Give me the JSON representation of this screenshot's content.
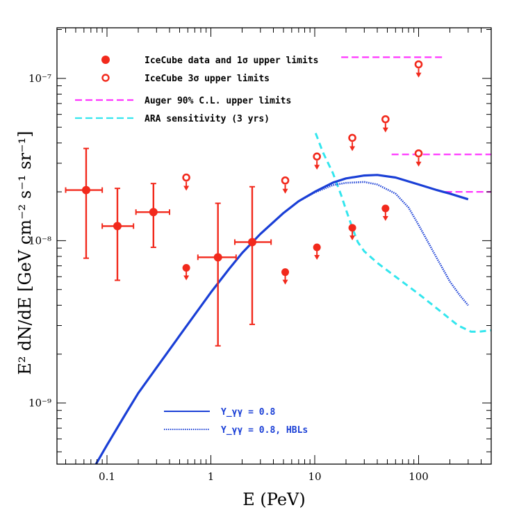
{
  "chart_data": {
    "type": "scatter",
    "title": "",
    "xlabel": "E (PeV)",
    "ylabel": "E² dN/dE [GeV cm⁻² s⁻¹ sr⁻¹]",
    "x_scale": "log",
    "y_scale": "log",
    "xlim": [
      0.033,
      500
    ],
    "ylim": [
      4.2e-10,
      2.05e-07
    ],
    "x_ticks": [
      {
        "value": 0.1,
        "label": "0.1"
      },
      {
        "value": 1,
        "label": "1"
      },
      {
        "value": 10,
        "label": "10"
      },
      {
        "value": 100,
        "label": "100"
      }
    ],
    "y_ticks": [
      {
        "value": 1e-09,
        "label": "10⁻⁹"
      },
      {
        "value": 1e-08,
        "label": "10⁻⁸"
      },
      {
        "value": 1e-07,
        "label": "10⁻⁷"
      }
    ],
    "colors": {
      "icecube": "#f2291c",
      "auger": "#ff33ff",
      "ara": "#33e6ee",
      "model": "#1a3fd6"
    },
    "legend_top": [
      {
        "key": "icecube_data",
        "label": "IceCube data and 1σ upper limits"
      },
      {
        "key": "icecube_3sigma",
        "label": "IceCube 3σ upper limits"
      },
      {
        "key": "auger",
        "label": "Auger 90% C.L. upper limits"
      },
      {
        "key": "ara",
        "label": "ARA sensitivity (3 yrs)"
      }
    ],
    "legend_bottom": [
      {
        "key": "model_solid",
        "label": "Y_γγ = 0.8"
      },
      {
        "key": "model_dotted",
        "label": "Y_γγ = 0.8, HBLs"
      }
    ],
    "icecube_data": [
      {
        "x": 0.063,
        "y": 2.05e-08,
        "xlo": 0.04,
        "xhi": 0.09,
        "ylo": 7.8e-09,
        "yhi": 3.7e-08
      },
      {
        "x": 0.126,
        "y": 1.23e-08,
        "xlo": 0.09,
        "xhi": 0.18,
        "ylo": 5.7e-09,
        "yhi": 2.1e-08
      },
      {
        "x": 0.28,
        "y": 1.5e-08,
        "xlo": 0.19,
        "xhi": 0.4,
        "ylo": 9.1e-09,
        "yhi": 2.25e-08
      },
      {
        "x": 1.17,
        "y": 7.9e-09,
        "xlo": 0.75,
        "xhi": 1.75,
        "ylo": 2.25e-09,
        "yhi": 1.7e-08
      },
      {
        "x": 2.5,
        "y": 9.8e-09,
        "xlo": 1.7,
        "xhi": 3.8,
        "ylo": 3.05e-09,
        "yhi": 2.15e-08
      }
    ],
    "icecube_1sigma_limits": [
      {
        "x": 0.58,
        "y": 6.8e-09
      },
      {
        "x": 5.2,
        "y": 6.4e-09
      },
      {
        "x": 10.5,
        "y": 9.1e-09
      },
      {
        "x": 23,
        "y": 1.2e-08
      },
      {
        "x": 48,
        "y": 1.58e-08
      }
    ],
    "icecube_3sigma_limits": [
      {
        "x": 0.58,
        "y": 2.45e-08
      },
      {
        "x": 5.2,
        "y": 2.35e-08
      },
      {
        "x": 10.5,
        "y": 3.3e-08
      },
      {
        "x": 23,
        "y": 4.3e-08
      },
      {
        "x": 48,
        "y": 5.6e-08
      },
      {
        "x": 100,
        "y": 1.22e-07
      },
      {
        "x": 100,
        "y": 3.45e-08
      }
    ],
    "auger_limits": [
      {
        "x1": 18,
        "x2": 180,
        "y": 1.35e-07
      },
      {
        "x1": 55,
        "x2": 500,
        "y": 3.4e-08
      },
      {
        "x1": 180,
        "x2": 500,
        "y": 2e-08
      }
    ],
    "series": [
      {
        "name": "ARA sensitivity (3 yrs)",
        "style": "dashed",
        "x": [
          10.2,
          12,
          15,
          18,
          20,
          23,
          26,
          30,
          40,
          60,
          100,
          160,
          240,
          320,
          380,
          500
        ],
        "y": [
          4.6e-08,
          3.5e-08,
          2.6e-08,
          1.9e-08,
          1.55e-08,
          1.2e-08,
          9.8e-09,
          8.6e-09,
          7.3e-09,
          6e-09,
          4.7e-09,
          3.7e-09,
          3e-09,
          2.75e-09,
          2.75e-09,
          2.8e-09
        ]
      },
      {
        "name": "Y_γγ = 0.8",
        "style": "solid",
        "x": [
          0.075,
          0.1,
          0.15,
          0.2,
          0.3,
          0.5,
          0.7,
          1,
          1.5,
          2,
          3,
          5,
          7,
          10,
          15,
          20,
          30,
          40,
          60,
          100,
          150,
          200,
          300
        ],
        "y": [
          4e-10,
          5.5e-10,
          8.5e-10,
          1.15e-09,
          1.65e-09,
          2.6e-09,
          3.5e-09,
          4.8e-09,
          6.7e-09,
          8.4e-09,
          1.1e-08,
          1.48e-08,
          1.75e-08,
          2e-08,
          2.28e-08,
          2.42e-08,
          2.52e-08,
          2.54e-08,
          2.45e-08,
          2.22e-08,
          2.05e-08,
          1.95e-08,
          1.8e-08
        ]
      },
      {
        "name": "Y_γγ = 0.8, HBLs",
        "style": "dotted",
        "x": [
          1.5,
          2,
          3,
          5,
          7,
          10,
          15,
          20,
          30,
          40,
          60,
          80,
          100,
          150,
          200,
          250,
          300
        ],
        "y": [
          6.7e-09,
          8.4e-09,
          1.1e-08,
          1.48e-08,
          1.75e-08,
          1.98e-08,
          2.2e-08,
          2.27e-08,
          2.3e-08,
          2.22e-08,
          1.95e-08,
          1.6e-08,
          1.25e-08,
          7.8e-09,
          5.6e-09,
          4.6e-09,
          4e-09
        ]
      }
    ]
  }
}
